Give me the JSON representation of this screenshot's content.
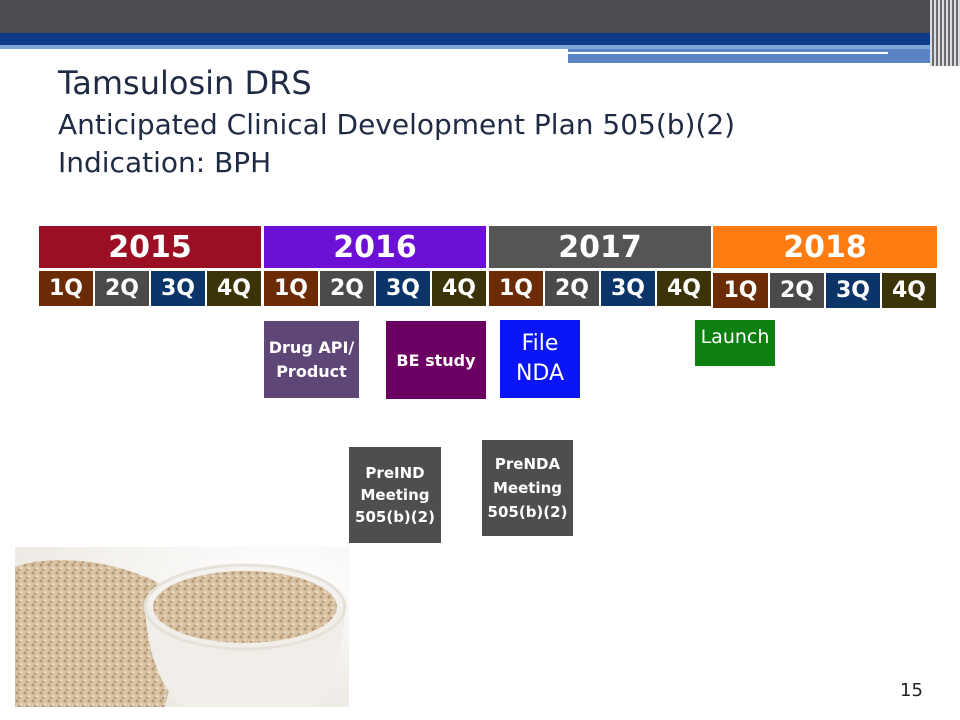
{
  "title": {
    "line1": "Tamsulosin DRS",
    "line2": "Anticipated Clinical Development Plan 505(b)(2)",
    "line3": "Indication: BPH"
  },
  "timeline": {
    "years": [
      {
        "label": "2015",
        "color": "#9b0f25"
      },
      {
        "label": "2016",
        "color": "#6d10d6"
      },
      {
        "label": "2017",
        "color": "#555555"
      },
      {
        "label": "2018",
        "color": "#ff7c10"
      }
    ],
    "quarters": [
      "1Q",
      "2Q",
      "3Q",
      "4Q"
    ],
    "quarter_colors": [
      "#6b2c05",
      "#4a4a4a",
      "#0b3468",
      "#3b3409"
    ]
  },
  "milestones": {
    "drug_api": {
      "line1": "Drug API/",
      "line2": "Product",
      "color": "#5e4677"
    },
    "be_study": {
      "label": "BE study",
      "color": "#6c0062"
    },
    "file_nda": {
      "line1": "File",
      "line2": "NDA",
      "color": "#0a16f5"
    },
    "launch": {
      "label": "Launch",
      "color": "#0d8011"
    },
    "preind": {
      "line1": "PreIND",
      "line2": "Meeting",
      "line3": "505(b)(2)",
      "color": "#4e4e4e"
    },
    "prenda": {
      "line1": "PreNDA",
      "line2": "Meeting",
      "line3": "505(b)(2)",
      "color": "#4e4e4e"
    }
  },
  "page_number": "15",
  "photo": {
    "icon": "wheat-bran-bowl-photo"
  }
}
